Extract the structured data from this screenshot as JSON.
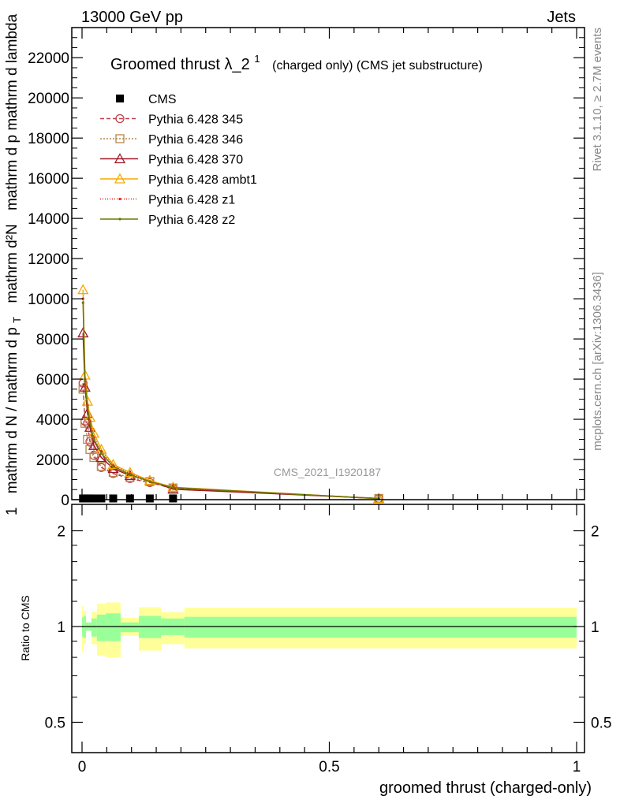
{
  "chart_data": {
    "type": "line",
    "header_left": "13000 GeV pp",
    "header_right": "Jets",
    "title": "Groomed thrust",
    "title_symbol": "λ_2",
    "title_sup": "1",
    "title_suffix": "(charged only) (CMS jet substructure)",
    "ylabel_num_left": "mathrm d²N",
    "ylabel_num_right": "mathrm d p mathrm d lambda",
    "ylabel_den_left": "1",
    "ylabel_den_right": "mathrm d N / mathrm d p",
    "ylabel_sub": "T",
    "xlabel": "groomed thrust (charged-only)",
    "ratio_ylabel": "Ratio to CMS",
    "side_label_top": "Rivet 3.1.10, ≥ 2.7M events",
    "side_label_bottom": "mcplots.cern.ch [arXiv:1306.3436]",
    "watermark": "CMS_2021_I1920187",
    "xlim": [
      0,
      1
    ],
    "ylim": [
      0,
      23500
    ],
    "yticks": [
      0,
      2000,
      4000,
      6000,
      8000,
      10000,
      12000,
      14000,
      16000,
      18000,
      20000,
      22000
    ],
    "ytick_labels": [
      "0",
      "2000",
      "4000",
      "6000",
      "8000",
      "10000",
      "12000",
      "14000",
      "16000",
      "18000",
      "20000",
      "22000"
    ],
    "xticks": [
      0,
      0.5,
      1
    ],
    "xtick_labels": [
      "0",
      "0.5",
      "1"
    ],
    "ratio_ylim": [
      0.42,
      2.3
    ],
    "ratio_yticks": [
      0.5,
      1,
      2
    ],
    "ratio_ytick_labels": [
      "0.5",
      "1",
      "2"
    ],
    "bin_edges": [
      0,
      0.003,
      0.008,
      0.013,
      0.019,
      0.03,
      0.048,
      0.078,
      0.115,
      0.16,
      0.207,
      1.0
    ],
    "x": [
      0.002,
      0.006,
      0.011,
      0.016,
      0.024,
      0.039,
      0.063,
      0.097,
      0.137,
      0.184,
      0.6
    ],
    "series": [
      {
        "name": "CMS",
        "color": "#000000",
        "marker": "square",
        "dash": "",
        "values": [
          60,
          60,
          60,
          60,
          60,
          60,
          60,
          60,
          60,
          60,
          null
        ]
      },
      {
        "name": "Pythia 6.428 345",
        "color": "#c0404a",
        "marker": "circle",
        "dash": "5,3",
        "values": [
          5800,
          3900,
          3800,
          2900,
          2200,
          1600,
          1300,
          1050,
          850,
          560,
          60
        ]
      },
      {
        "name": "Pythia 6.428 346",
        "color": "#b8864b",
        "marker": "square-open",
        "dash": "2,2",
        "values": [
          5500,
          3800,
          3000,
          2500,
          2100,
          1650,
          1350,
          1100,
          900,
          580,
          60
        ]
      },
      {
        "name": "Pythia 6.428 370",
        "color": "#a01828",
        "marker": "triangle",
        "dash": "",
        "values": [
          8300,
          5600,
          4300,
          3600,
          2700,
          2100,
          1550,
          1200,
          950,
          520,
          60
        ]
      },
      {
        "name": "Pythia 6.428 ambt1",
        "color": "#f5a800",
        "marker": "triangle",
        "dash": "",
        "values": [
          10450,
          6200,
          4900,
          4100,
          3300,
          2500,
          1750,
          1350,
          950,
          620,
          50
        ]
      },
      {
        "name": "Pythia 6.428 z1",
        "color": "#e02010",
        "marker": "dot",
        "dash": "1,2",
        "values": [
          10000,
          6000,
          4700,
          3900,
          3100,
          2400,
          1700,
          1300,
          900,
          600,
          50
        ]
      },
      {
        "name": "Pythia 6.428 z2",
        "color": "#6b7a00",
        "marker": "dot",
        "dash": "",
        "values": [
          9800,
          5900,
          4600,
          3800,
          3000,
          2300,
          1650,
          1250,
          900,
          600,
          50
        ]
      }
    ],
    "ratio_band_yellow": [
      [
        0.83,
        1.16
      ],
      [
        0.88,
        1.12
      ],
      [
        0.97,
        1.03
      ],
      [
        0.97,
        1.03
      ],
      [
        0.88,
        1.11
      ],
      [
        0.81,
        1.18
      ],
      [
        0.8,
        1.19
      ],
      [
        0.935,
        1.065
      ],
      [
        0.84,
        1.15
      ],
      [
        0.88,
        1.11
      ],
      [
        0.854,
        1.147
      ]
    ],
    "ratio_band_green": [
      [
        0.93,
        1.07
      ],
      [
        0.92,
        1.08
      ],
      [
        0.97,
        1.03
      ],
      [
        0.97,
        1.03
      ],
      [
        0.93,
        1.06
      ],
      [
        0.9,
        1.09
      ],
      [
        0.9,
        1.1
      ],
      [
        0.96,
        1.03
      ],
      [
        0.92,
        1.08
      ],
      [
        0.94,
        1.06
      ],
      [
        0.923,
        1.073
      ]
    ],
    "band_colors": {
      "yellow": "#ffff99",
      "green": "#99ff99"
    }
  }
}
